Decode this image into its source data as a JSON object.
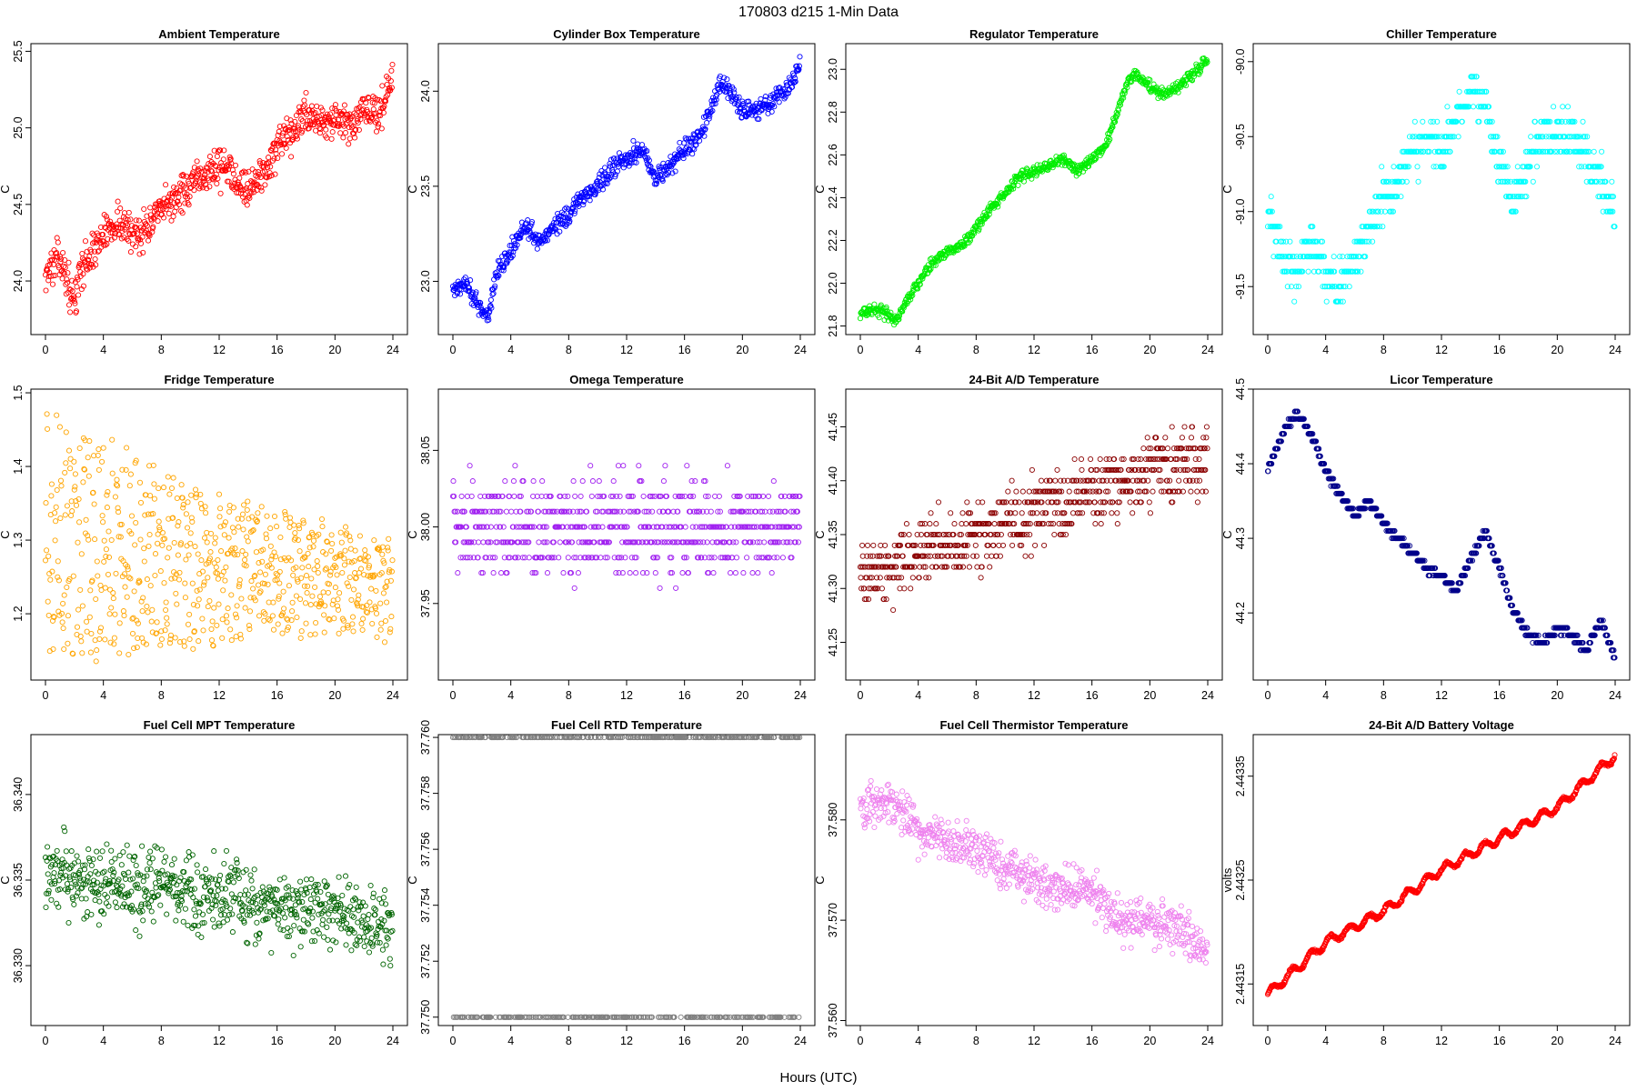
{
  "figure": {
    "suptitle": "170803   d215   1-Min Data",
    "xlabel": "Hours (UTC)"
  },
  "chart_data": [
    {
      "type": "scatter",
      "title": "Ambient Temperature",
      "ylabel": "C",
      "color": "#ff0000",
      "xlim": [
        0,
        24
      ],
      "ylim": [
        23.65,
        25.55
      ],
      "xticks": [
        0,
        4,
        8,
        12,
        16,
        20,
        24
      ],
      "yticks": [
        24.0,
        24.5,
        25.0,
        25.5
      ],
      "ytick_labels": [
        "24.0",
        "24.5",
        "25.0",
        "25.5"
      ],
      "x": [
        0,
        0.5,
        1,
        1.5,
        2,
        2.5,
        3,
        4,
        5,
        6,
        7,
        8,
        9,
        10,
        11,
        12,
        13,
        14,
        15,
        16,
        17,
        18,
        19,
        20,
        21,
        22,
        23,
        24
      ],
      "y": [
        24.05,
        24.1,
        24.15,
        24.0,
        23.85,
        24.1,
        24.15,
        24.3,
        24.4,
        24.3,
        24.35,
        24.45,
        24.55,
        24.6,
        24.7,
        24.75,
        24.7,
        24.6,
        24.7,
        24.85,
        24.95,
        25.1,
        25.05,
        25.05,
        25.0,
        25.1,
        25.1,
        25.3
      ],
      "noise": 0.12
    },
    {
      "type": "scatter",
      "title": "Cylinder Box Temperature",
      "ylabel": "C",
      "color": "#0000ff",
      "xlim": [
        0,
        24
      ],
      "ylim": [
        22.72,
        24.25
      ],
      "xticks": [
        0,
        4,
        8,
        12,
        16,
        20,
        24
      ],
      "yticks": [
        23.0,
        23.5,
        24.0
      ],
      "ytick_labels": [
        "23.0",
        "23.5",
        "24.0"
      ],
      "x": [
        0,
        1,
        1.5,
        2,
        2.5,
        3,
        4,
        5,
        6,
        7,
        8,
        9,
        10,
        11,
        12,
        13,
        14,
        15,
        16,
        17,
        18,
        18.5,
        19,
        20,
        21,
        22,
        23,
        24
      ],
      "y": [
        22.95,
        23.0,
        22.9,
        22.85,
        22.82,
        23.05,
        23.15,
        23.3,
        23.2,
        23.3,
        23.35,
        23.45,
        23.5,
        23.6,
        23.65,
        23.7,
        23.55,
        23.6,
        23.7,
        23.75,
        23.95,
        24.05,
        24.0,
        23.9,
        23.9,
        23.95,
        24.0,
        24.15
      ],
      "noise": 0.05
    },
    {
      "type": "scatter",
      "title": "Regulator Temperature",
      "ylabel": "C",
      "color": "#00ee00",
      "xlim": [
        0,
        24
      ],
      "ylim": [
        21.76,
        23.12
      ],
      "xticks": [
        0,
        4,
        8,
        12,
        16,
        20,
        24
      ],
      "yticks": [
        21.8,
        22.0,
        22.2,
        22.4,
        22.6,
        22.8,
        23.0
      ],
      "ytick_labels": [
        "21.8",
        "22.0",
        "22.2",
        "22.4",
        "22.6",
        "22.8",
        "23.0"
      ],
      "x": [
        0,
        1,
        2,
        2.5,
        3,
        4,
        5,
        6,
        7,
        8,
        9,
        10,
        11,
        12,
        13,
        14,
        15,
        16,
        17,
        18,
        18.5,
        19,
        20,
        21,
        22,
        23,
        24
      ],
      "y": [
        21.86,
        21.88,
        21.85,
        21.82,
        21.9,
        22.0,
        22.1,
        22.15,
        22.18,
        22.25,
        22.35,
        22.42,
        22.5,
        22.52,
        22.55,
        22.58,
        22.52,
        22.58,
        22.65,
        22.85,
        22.95,
        22.98,
        22.92,
        22.88,
        22.92,
        22.98,
        23.05
      ],
      "noise": 0.025
    },
    {
      "type": "scatter",
      "title": "Chiller Temperature",
      "ylabel": "C",
      "color": "#00ffff",
      "xlim": [
        0,
        24
      ],
      "ylim": [
        -91.82,
        -89.88
      ],
      "xticks": [
        0,
        4,
        8,
        12,
        16,
        20,
        24
      ],
      "yticks": [
        -91.5,
        -91.0,
        -90.5,
        -90.0
      ],
      "ytick_labels": [
        "-91.5",
        "-91.0",
        "-90.5",
        "-90.0"
      ],
      "x": [
        0,
        1,
        2,
        3,
        4,
        5,
        6,
        7,
        8,
        9,
        10,
        11,
        12,
        13,
        14,
        15,
        16,
        17,
        18,
        19,
        20,
        21,
        22,
        23,
        24
      ],
      "y": [
        -91.0,
        -91.3,
        -91.4,
        -91.2,
        -91.4,
        -91.5,
        -91.3,
        -91.1,
        -90.9,
        -90.8,
        -90.6,
        -90.5,
        -90.6,
        -90.4,
        -90.2,
        -90.3,
        -90.7,
        -90.9,
        -90.7,
        -90.5,
        -90.5,
        -90.5,
        -90.6,
        -90.8,
        -91.0
      ],
      "quant": 0.1,
      "noise": 0.15
    },
    {
      "type": "scatter",
      "title": "Fridge Temperature",
      "ylabel": "C",
      "color": "#ffa500",
      "xlim": [
        0,
        24
      ],
      "ylim": [
        1.11,
        1.505
      ],
      "xticks": [
        0,
        4,
        8,
        12,
        16,
        20,
        24
      ],
      "yticks": [
        1.2,
        1.3,
        1.4,
        1.5
      ],
      "ytick_labels": [
        "1.2",
        "1.3",
        "1.4",
        "1.5"
      ],
      "x": [
        0,
        4,
        8,
        12,
        16,
        20,
        24
      ],
      "y_low": [
        1.13,
        1.14,
        1.15,
        1.16,
        1.17,
        1.17,
        1.17
      ],
      "y_high": [
        1.47,
        1.44,
        1.4,
        1.37,
        1.34,
        1.32,
        1.3
      ],
      "band": true
    },
    {
      "type": "scatter",
      "title": "Omega Temperature",
      "ylabel": "C",
      "color": "#a020f0",
      "xlim": [
        0,
        24
      ],
      "ylim": [
        37.9,
        38.09
      ],
      "xticks": [
        0,
        4,
        8,
        12,
        16,
        20,
        24
      ],
      "yticks": [
        37.95,
        38.0,
        38.05
      ],
      "ytick_labels": [
        "37.95",
        "38.00",
        "38.05"
      ],
      "x": [
        0,
        24
      ],
      "y": [
        38.0,
        38.0
      ],
      "quant": 0.01,
      "noise": 0.03
    },
    {
      "type": "scatter",
      "title": "24-Bit A/D Temperature",
      "ylabel": "C",
      "color": "#8b0000",
      "xlim": [
        0,
        24
      ],
      "ylim": [
        41.215,
        41.485
      ],
      "xticks": [
        0,
        4,
        8,
        12,
        16,
        20,
        24
      ],
      "yticks": [
        41.25,
        41.3,
        41.35,
        41.4,
        41.45
      ],
      "ytick_labels": [
        "41.25",
        "41.30",
        "41.35",
        "41.40",
        "41.45"
      ],
      "x": [
        0,
        4,
        8,
        12,
        16,
        20,
        24
      ],
      "y": [
        41.31,
        41.33,
        41.35,
        41.37,
        41.39,
        41.41,
        41.42
      ],
      "quant": 0.01,
      "noise": 0.03
    },
    {
      "type": "scatter",
      "title": "Licor Temperature",
      "ylabel": "C",
      "color": "#00008b",
      "xlim": [
        0,
        24
      ],
      "ylim": [
        44.11,
        44.5
      ],
      "xticks": [
        0,
        4,
        8,
        12,
        16,
        20,
        24
      ],
      "yticks": [
        44.2,
        44.3,
        44.4,
        44.5
      ],
      "ytick_labels": [
        "44.2",
        "44.3",
        "44.4",
        "44.5"
      ],
      "x": [
        0,
        1,
        2,
        3,
        4,
        5,
        6,
        7,
        8,
        9,
        10,
        11,
        12,
        13,
        14,
        15,
        16,
        17,
        18,
        19,
        20,
        21,
        22,
        23,
        24
      ],
      "y": [
        44.39,
        44.44,
        44.47,
        44.44,
        44.39,
        44.36,
        44.33,
        44.35,
        44.32,
        44.3,
        44.28,
        44.26,
        44.25,
        44.23,
        44.27,
        44.31,
        44.26,
        44.2,
        44.17,
        44.16,
        44.18,
        44.17,
        44.15,
        44.19,
        44.14
      ],
      "quant": 0.01,
      "noise": 0.004
    },
    {
      "type": "scatter",
      "title": "Fuel Cell MPT Temperature",
      "ylabel": "C",
      "color": "#006400",
      "xlim": [
        0,
        24
      ],
      "ylim": [
        36.3265,
        36.3435
      ],
      "xticks": [
        0,
        4,
        8,
        12,
        16,
        20,
        24
      ],
      "yticks": [
        36.33,
        36.335,
        36.34
      ],
      "ytick_labels": [
        "36.330",
        "36.335",
        "36.340"
      ],
      "x": [
        0,
        4,
        8,
        12,
        16,
        20,
        24
      ],
      "y": [
        36.3355,
        36.335,
        36.3345,
        36.334,
        36.3335,
        36.333,
        36.3325
      ],
      "noise": 0.0022
    },
    {
      "type": "scatter",
      "title": "Fuel Cell RTD Temperature",
      "ylabel": "C",
      "color": "#808080",
      "xlim": [
        0,
        24
      ],
      "ylim": [
        37.7497,
        37.7601
      ],
      "xticks": [
        0,
        4,
        8,
        12,
        16,
        20,
        24
      ],
      "yticks": [
        37.75,
        37.752,
        37.754,
        37.756,
        37.758,
        37.76
      ],
      "ytick_labels": [
        "37.750",
        "37.752",
        "37.754",
        "37.756",
        "37.758",
        "37.760"
      ],
      "levels": [
        37.75,
        37.76
      ]
    },
    {
      "type": "scatter",
      "title": "Fuel Cell Thermistor Temperature",
      "ylabel": "C",
      "color": "#ee82ee",
      "xlim": [
        0,
        24
      ],
      "ylim": [
        37.5595,
        37.5885
      ],
      "xticks": [
        0,
        4,
        8,
        12,
        16,
        20,
        24
      ],
      "yticks": [
        37.56,
        37.57,
        37.58
      ],
      "ytick_labels": [
        "37.560",
        "37.570",
        "37.580"
      ],
      "x": [
        0,
        2,
        4,
        6,
        8,
        10,
        12,
        14,
        16,
        18,
        20,
        22,
        24
      ],
      "y": [
        37.581,
        37.582,
        37.579,
        37.578,
        37.577,
        37.575,
        37.574,
        37.573,
        37.573,
        37.57,
        37.57,
        37.569,
        37.567
      ],
      "noise": 0.0022
    },
    {
      "type": "scatter",
      "title": "24-Bit A/D Battery Voltage",
      "ylabel": "volts",
      "color": "#ff0000",
      "xlim": [
        0,
        24
      ],
      "ylim": [
        2.44311,
        2.44339
      ],
      "xticks": [
        0,
        4,
        8,
        12,
        16,
        20,
        24
      ],
      "yticks": [
        2.44315,
        2.44325,
        2.44335
      ],
      "ytick_labels": [
        "2.44315",
        "2.44325",
        "2.44335"
      ],
      "x": [
        0,
        4,
        8,
        12,
        16,
        20,
        24
      ],
      "y": [
        2.44314,
        2.44319,
        2.44322,
        2.44326,
        2.44329,
        2.44332,
        2.44337
      ],
      "wave": 8e-06,
      "noise": 1.5e-06
    }
  ]
}
